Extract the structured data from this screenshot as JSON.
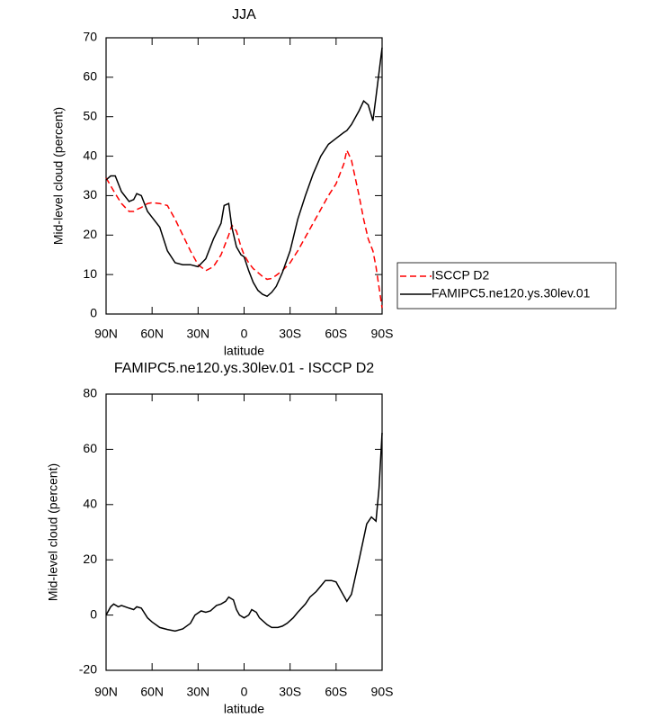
{
  "chart_data": [
    {
      "type": "line",
      "title": "JJA",
      "x_label": "latitude",
      "y_label": "Mid-level cloud (percent)",
      "xlim": [
        90,
        -90
      ],
      "xticks": [
        {
          "value": 90,
          "label": "90N"
        },
        {
          "value": 60,
          "label": "60N"
        },
        {
          "value": 30,
          "label": "30N"
        },
        0,
        {
          "value": -30,
          "label": "30S"
        },
        {
          "value": -60,
          "label": "60S"
        },
        {
          "value": -90,
          "label": "90S"
        }
      ],
      "ylim": [
        0,
        70
      ],
      "yticks": [
        0,
        10,
        20,
        30,
        40,
        50,
        60,
        70
      ],
      "legend": "right",
      "x": [
        90,
        87,
        84,
        80,
        75,
        72,
        70,
        67,
        63,
        60,
        55,
        50,
        45,
        40,
        35,
        30,
        25,
        20,
        15,
        13,
        10,
        8,
        5,
        2,
        0,
        -3,
        -6,
        -9,
        -12,
        -15,
        -18,
        -21,
        -25,
        -30,
        -35,
        -40,
        -45,
        -50,
        -55,
        -60,
        -65,
        -67,
        -70,
        -75,
        -78,
        -81,
        -84,
        -86,
        -90
      ],
      "series": [
        {
          "name": "ISCCP D2",
          "color": "#ff0000",
          "linestyle": "dashed",
          "values": [
            34.5,
            32.5,
            30.5,
            28,
            26,
            26,
            26.5,
            27,
            28,
            28.2,
            28,
            27.5,
            24,
            20,
            16,
            12.5,
            11,
            12,
            15,
            17,
            20,
            22.5,
            21,
            17,
            15,
            13,
            11.5,
            10.5,
            9.5,
            8.8,
            9,
            9.8,
            11,
            13,
            16,
            19.5,
            23,
            26.5,
            30,
            33,
            38,
            41.5,
            39,
            30,
            24,
            19,
            16,
            12,
            1.5
          ]
        },
        {
          "name": "FAMIPC5.ne120.ys.30lev.01",
          "color": "#000000",
          "linestyle": "solid",
          "values": [
            34,
            35,
            35,
            31,
            28.5,
            29,
            30.5,
            30,
            26,
            24.5,
            22,
            16,
            13,
            12.5,
            12.5,
            12,
            14,
            19,
            23,
            27.5,
            28,
            22,
            17,
            15,
            14.5,
            11,
            8,
            6,
            5,
            4.5,
            5.5,
            7,
            10.5,
            16,
            24,
            30,
            35.5,
            40,
            43,
            44.5,
            46,
            46.5,
            48,
            51.5,
            54,
            53,
            49,
            55,
            67.5
          ]
        }
      ]
    },
    {
      "type": "line",
      "title": "FAMIPC5.ne120.ys.30lev.01 - ISCCP D2",
      "x_label": "latitude",
      "y_label": "Mid-level cloud (percent)",
      "xlim": [
        90,
        -90
      ],
      "xticks": [
        {
          "value": 90,
          "label": "90N"
        },
        {
          "value": 60,
          "label": "60N"
        },
        {
          "value": 30,
          "label": "30N"
        },
        0,
        {
          "value": -30,
          "label": "30S"
        },
        {
          "value": -60,
          "label": "60S"
        },
        {
          "value": -90,
          "label": "90S"
        }
      ],
      "ylim": [
        -20,
        80
      ],
      "yticks": [
        -20,
        0,
        20,
        40,
        60,
        80
      ],
      "color": "#000000",
      "x": [
        90,
        87,
        85,
        82,
        80,
        75,
        72,
        70,
        67,
        63,
        60,
        55,
        50,
        45,
        40,
        35,
        32,
        28,
        25,
        22,
        18,
        15,
        12,
        10,
        7,
        5,
        3,
        0,
        -3,
        -5,
        -8,
        -10,
        -15,
        -18,
        -22,
        -25,
        -28,
        -32,
        -35,
        -40,
        -43,
        -47,
        -50,
        -53,
        -57,
        -60,
        -63,
        -67,
        -70,
        -75,
        -80,
        -83,
        -86,
        -88,
        -90
      ],
      "values": [
        0,
        3,
        4,
        3,
        3.5,
        2.5,
        2,
        3,
        2.5,
        -1,
        -2.5,
        -4.5,
        -5.2,
        -5.8,
        -5,
        -3,
        0,
        1.5,
        1,
        1.5,
        3.5,
        4,
        5,
        6.5,
        5.5,
        2,
        0,
        -1,
        0,
        2,
        1,
        -1,
        -3.5,
        -4.5,
        -4.5,
        -4,
        -3,
        -1,
        1,
        4,
        6.5,
        8.5,
        10.5,
        12.5,
        12.5,
        12,
        9,
        5,
        7.5,
        20,
        33,
        35.5,
        34,
        46,
        66
      ]
    }
  ]
}
